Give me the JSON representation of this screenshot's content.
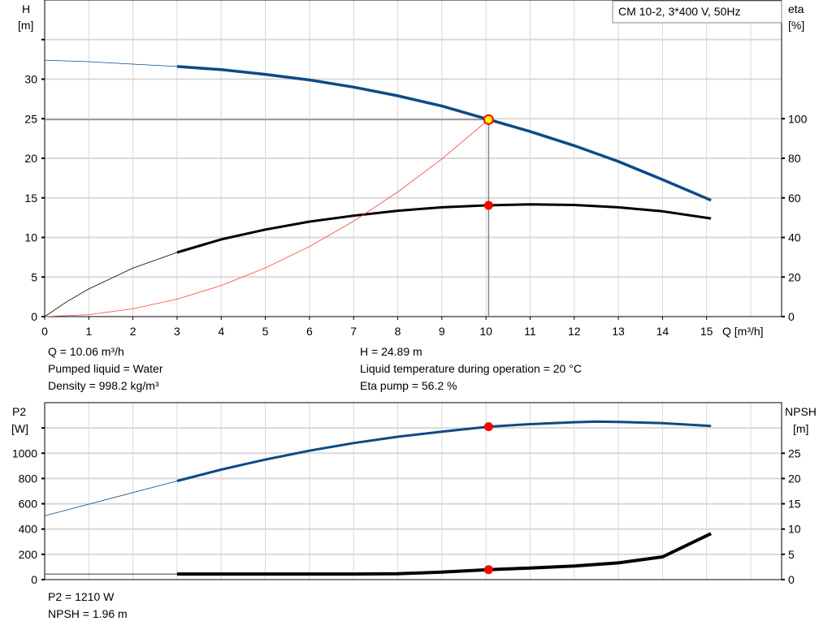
{
  "legend": "CM 10-2, 3*400 V, 50Hz",
  "info_top_left": [
    "Q = 10.06 m³/h",
    "Pumped liquid = Water",
    "Density = 998.2 kg/m³"
  ],
  "info_top_right": [
    "H = 24.89 m",
    "Liquid temperature during operation = 20 °C",
    "Eta pump = 56.2 %"
  ],
  "info_bottom": [
    "P2 = 1210 W",
    "NPSH = 1.96 m"
  ],
  "colors": {
    "head": "#0d4a86",
    "eta": "#000000",
    "system": "#ff4040",
    "marker": "#ff0000",
    "duty_point": "#ffff00",
    "grid": "#d8d8d8"
  },
  "chart_data": [
    {
      "type": "line",
      "xlabel": "Q [m³/h]",
      "ylabel": [
        "H",
        "[m]"
      ],
      "y2label": [
        "eta",
        "[%]"
      ],
      "xlim": [
        0,
        16.7
      ],
      "ylim": [
        0,
        40
      ],
      "y2lim": [
        0,
        160
      ],
      "xticks": [
        0,
        1,
        2,
        3,
        4,
        5,
        6,
        7,
        8,
        9,
        10,
        11,
        12,
        13,
        14,
        15
      ],
      "yticks": [
        0,
        5,
        10,
        15,
        20,
        25,
        30
      ],
      "yticks_unlabeled": [
        35
      ],
      "y2ticks": [
        0,
        20,
        40,
        60,
        80,
        100
      ],
      "grid": true,
      "legend_position": "top-right",
      "duty_point": {
        "Q": 10.06,
        "H": 24.89,
        "eta": 56.2
      },
      "series": [
        {
          "key": "H",
          "axis": "left",
          "x": [
            0,
            1,
            2,
            3,
            4,
            5,
            6,
            7,
            8,
            9,
            10,
            11,
            12,
            13,
            14,
            15.1
          ],
          "y": [
            32.4,
            32.2,
            31.9,
            31.6,
            31.2,
            30.6,
            29.9,
            29.0,
            27.9,
            26.6,
            25.0,
            23.4,
            21.6,
            19.6,
            17.3,
            14.7
          ],
          "thick_from": 3
        },
        {
          "key": "eta",
          "axis": "right",
          "x": [
            0,
            0.5,
            1,
            2,
            3,
            4,
            5,
            6,
            7,
            8,
            9,
            10,
            11,
            12,
            13,
            14,
            15.1
          ],
          "y": [
            0,
            7.5,
            14,
            24.5,
            32.4,
            39,
            44,
            48,
            51,
            53.5,
            55.2,
            56.2,
            56.7,
            56.4,
            55.2,
            53.2,
            49.6
          ],
          "thick_from": 3
        },
        {
          "key": "system",
          "axis": "left",
          "x": [
            0,
            1,
            2,
            3,
            4,
            5,
            6,
            7,
            8,
            9,
            10.06
          ],
          "y": [
            0,
            0.25,
            0.98,
            2.21,
            3.93,
            6.15,
            8.85,
            12.05,
            15.74,
            19.92,
            24.89
          ]
        }
      ]
    },
    {
      "type": "line",
      "ylabel": [
        "P2",
        "[W]"
      ],
      "y2label": [
        "NPSH",
        "[m]"
      ],
      "xlim": [
        0,
        16.7
      ],
      "ylim": [
        0,
        1400
      ],
      "y2lim": [
        0,
        35
      ],
      "yticks": [
        0,
        200,
        400,
        600,
        800,
        1000
      ],
      "yticks_unlabeled": [
        1200
      ],
      "y2ticks": [
        0,
        5,
        10,
        15,
        20,
        25
      ],
      "grid": true,
      "duty_point": {
        "Q": 10.06,
        "P2": 1210,
        "NPSH": 1.96
      },
      "series": [
        {
          "key": "P2",
          "axis": "left",
          "x": [
            0,
            3,
            4,
            5,
            6,
            7,
            8,
            9,
            10.06,
            11,
            12,
            12.5,
            13,
            14,
            15.1
          ],
          "y": [
            505,
            780,
            870,
            950,
            1020,
            1080,
            1130,
            1170,
            1210,
            1230,
            1245,
            1250,
            1248,
            1238,
            1215
          ],
          "thick_from": 3
        },
        {
          "key": "NPSH",
          "axis": "right",
          "x": [
            0,
            3,
            4,
            5,
            6,
            7,
            8,
            9,
            10.06,
            11,
            12,
            13,
            14,
            15.1
          ],
          "y": [
            1.1,
            1.1,
            1.1,
            1.1,
            1.1,
            1.1,
            1.15,
            1.5,
            1.96,
            2.3,
            2.7,
            3.3,
            4.5,
            9.1
          ],
          "thick_from": 3
        }
      ]
    }
  ]
}
